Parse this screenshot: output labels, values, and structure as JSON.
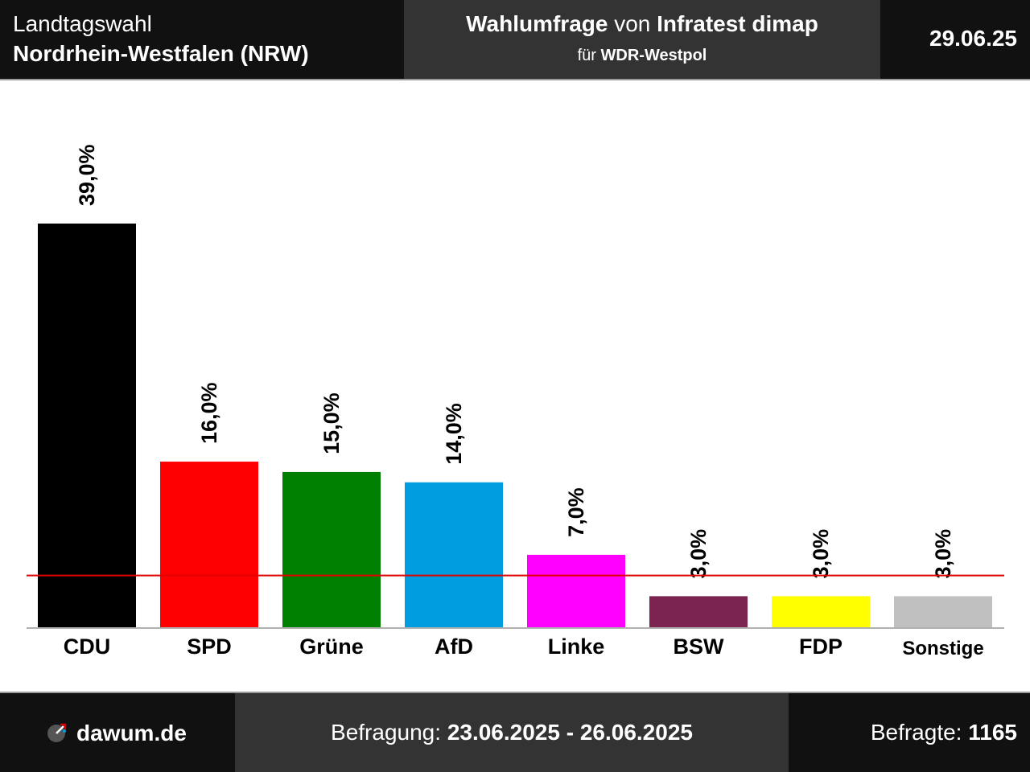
{
  "header": {
    "election_type": "Landtagswahl",
    "region": "Nordrhein-Westfalen (NRW)",
    "poll_word": "Wahlumfrage",
    "von_word": "von",
    "institute": "Infratest dimap",
    "fuer_word": "für",
    "client": "WDR-Westpol",
    "date": "29.06.25"
  },
  "chart_data": {
    "type": "bar",
    "categories": [
      "CDU",
      "SPD",
      "Grüne",
      "AfD",
      "Linke",
      "BSW",
      "FDP",
      "Sonstige"
    ],
    "values": [
      39.0,
      16.0,
      15.0,
      14.0,
      7.0,
      3.0,
      3.0,
      3.0
    ],
    "value_labels": [
      "39,0%",
      "16,0%",
      "15,0%",
      "14,0%",
      "7,0%",
      "3,0%",
      "3,0%",
      "3,0%"
    ],
    "colors": [
      "#000000",
      "#ff0000",
      "#008000",
      "#009ee0",
      "#ff00ff",
      "#7b2450",
      "#ffff00",
      "#c0c0c0"
    ],
    "threshold": 5,
    "threshold_color": "#e00000",
    "ylim": [
      0,
      39
    ]
  },
  "footer": {
    "brand": "dawum.de",
    "survey_label": "Befragung:",
    "survey_period": "23.06.2025 - 26.06.2025",
    "respondents_label": "Befragte:",
    "respondents": "1165"
  }
}
